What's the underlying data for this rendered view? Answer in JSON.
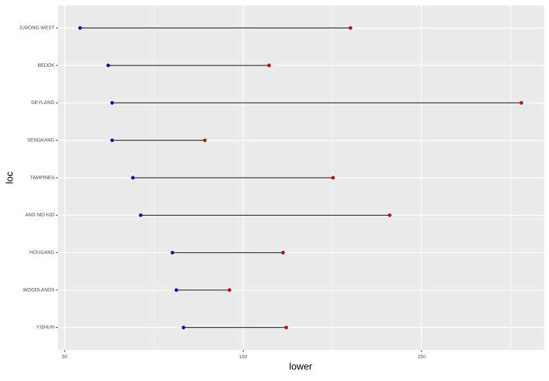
{
  "chart_data": {
    "type": "dumbbell",
    "x_label": "lower",
    "y_label": "loc",
    "categories": [
      "JURONG WEST",
      "BEDOK",
      "GEYLANG",
      "SENGKANG",
      "TAMPINES",
      "ANG MO KIO",
      "HOUGANG",
      "WOODLANDS",
      "YISHUN"
    ],
    "series": [
      {
        "color": "#0000cc",
        "values": [
          54.3,
          62.2,
          63.3,
          63.3,
          69.1,
          71.3,
          80.2,
          81.3,
          83.3
        ]
      },
      {
        "color": "#dd0000",
        "values": [
          130.1,
          107.3,
          178.0,
          89.3,
          125.2,
          141.1,
          111.2,
          96.2,
          112.1
        ]
      }
    ],
    "segment_color": "#000000",
    "xlim": [
      48.1,
      184.4
    ],
    "xticks": [
      50,
      100,
      150
    ],
    "x_minor_ticks": [
      75,
      125,
      175
    ],
    "grid": true
  }
}
